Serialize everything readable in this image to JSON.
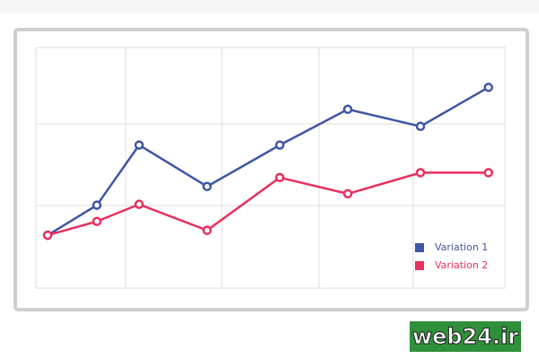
{
  "chart_data": {
    "type": "line",
    "x": [
      0.25,
      1.3,
      2.2,
      3.65,
      5.2,
      6.65,
      8.2,
      9.65
    ],
    "xlim": [
      0,
      10
    ],
    "ylim": [
      0,
      2.95
    ],
    "grid": true,
    "legend": "lower right",
    "series": [
      {
        "name": "Variation 1",
        "color": "#3f56a5",
        "values": [
          0.64,
          1.01,
          1.75,
          1.24,
          1.75,
          2.19,
          1.98,
          2.46
        ]
      },
      {
        "name": "Variation 2",
        "color": "#e8305e",
        "values": [
          0.64,
          0.81,
          1.02,
          0.7,
          1.35,
          1.15,
          1.41,
          1.41
        ]
      }
    ]
  },
  "watermark": "web24.ir"
}
